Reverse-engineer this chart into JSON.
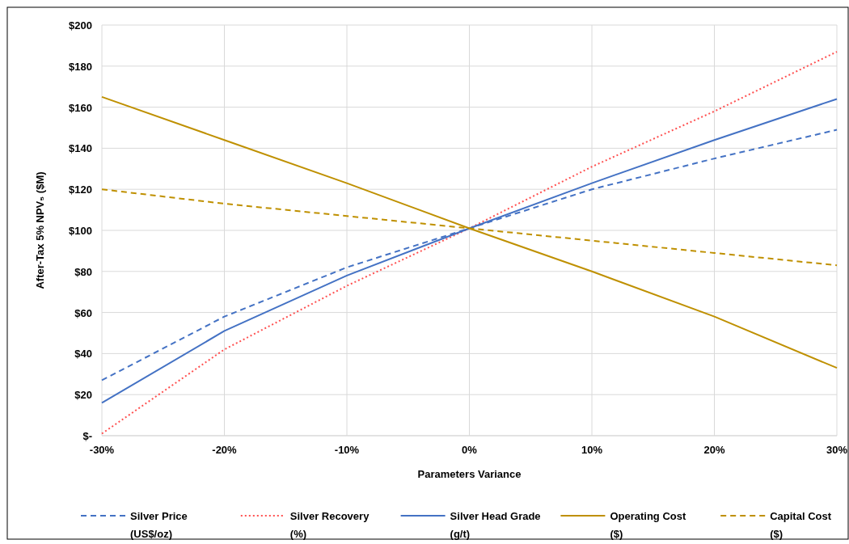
{
  "chart_data": {
    "type": "line",
    "ylabel": "After-Tax 5% NPV₅ ($M)",
    "xlabel": "Parameters Variance",
    "x": [
      -30,
      -20,
      -10,
      0,
      10,
      20,
      30
    ],
    "xlim": [
      -30,
      30
    ],
    "ylim": [
      0,
      200
    ],
    "xticks": [
      {
        "value": -30,
        "label": "-30%"
      },
      {
        "value": -20,
        "label": "-20%"
      },
      {
        "value": -10,
        "label": "-10%"
      },
      {
        "value": 0,
        "label": "0%"
      },
      {
        "value": 10,
        "label": "10%"
      },
      {
        "value": 20,
        "label": "20%"
      },
      {
        "value": 30,
        "label": "30%"
      }
    ],
    "yticks": [
      {
        "value": 0,
        "label": "$-"
      },
      {
        "value": 20,
        "label": "$20"
      },
      {
        "value": 40,
        "label": "$40"
      },
      {
        "value": 60,
        "label": "$60"
      },
      {
        "value": 80,
        "label": "$80"
      },
      {
        "value": 100,
        "label": "$100"
      },
      {
        "value": 120,
        "label": "$120"
      },
      {
        "value": 140,
        "label": "$140"
      },
      {
        "value": 160,
        "label": "$160"
      },
      {
        "value": 180,
        "label": "$180"
      },
      {
        "value": 200,
        "label": "$200"
      }
    ],
    "grid": true,
    "legend": "bottom",
    "marker": "none",
    "series": [
      {
        "name": "Silver Price (US$/oz)",
        "color": "#4472c4",
        "line_style": "dashed",
        "values": [
          27,
          58,
          82,
          101,
          120,
          135,
          149
        ]
      },
      {
        "name": "Silver Recovery (%)",
        "color": "#ff5050",
        "line_style": "dotted",
        "values": [
          1,
          42,
          73,
          101,
          131,
          158,
          187
        ]
      },
      {
        "name": "Silver Head Grade (g/t)",
        "color": "#4472c4",
        "line_style": "solid",
        "values": [
          16,
          51,
          78,
          101,
          123,
          144,
          164
        ]
      },
      {
        "name": "Operating Cost ($)",
        "color": "#bf9000",
        "line_style": "solid",
        "values": [
          165,
          144,
          123,
          101,
          80,
          58,
          33
        ]
      },
      {
        "name": "Capital Cost ($)",
        "color": "#bf9000",
        "line_style": "dashed",
        "values": [
          120,
          113,
          107,
          101,
          95,
          89,
          83
        ]
      }
    ]
  }
}
